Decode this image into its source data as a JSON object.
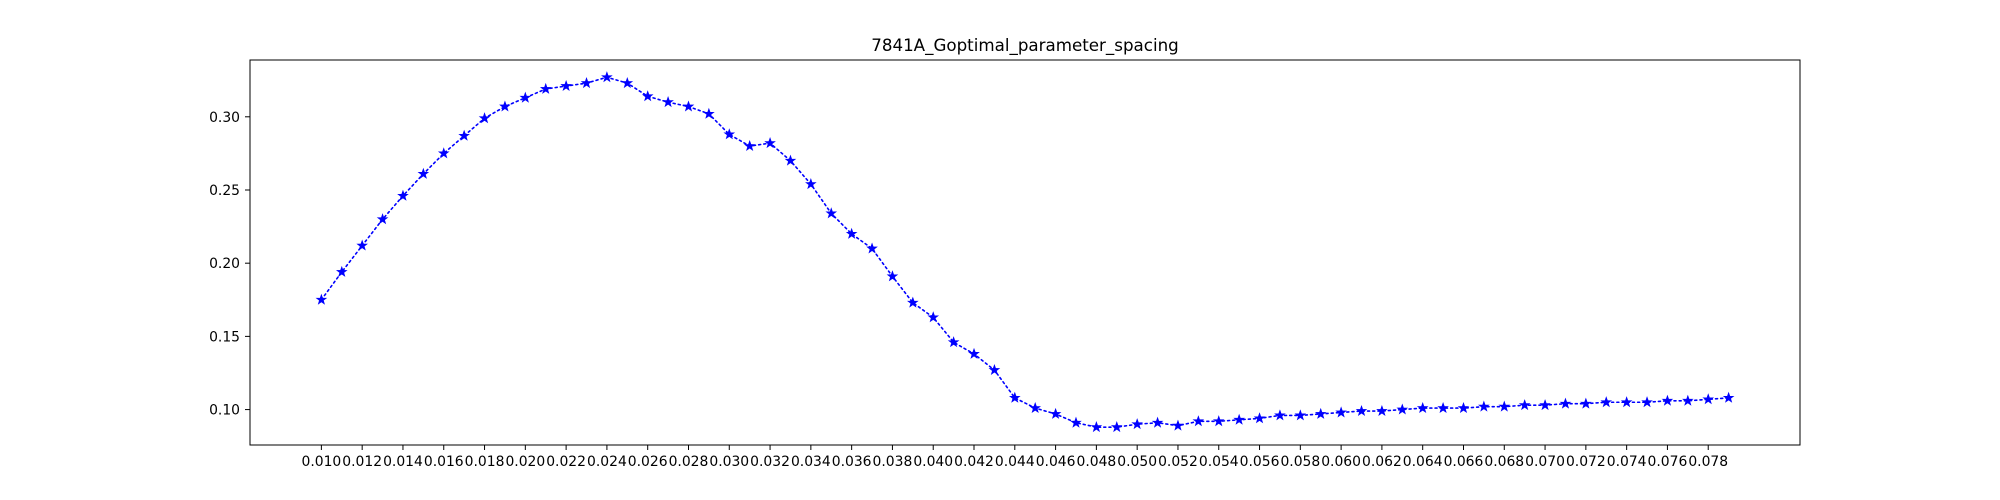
{
  "chart_data": {
    "type": "line",
    "title": "7841A_Goptimal_parameter_spacing",
    "xlabel": "",
    "ylabel": "",
    "x": [
      0.01,
      0.011,
      0.012,
      0.013,
      0.014,
      0.015,
      0.016,
      0.017,
      0.018,
      0.019,
      0.02,
      0.021,
      0.022,
      0.023,
      0.024,
      0.025,
      0.026,
      0.027,
      0.028,
      0.029,
      0.03,
      0.031,
      0.032,
      0.033,
      0.034,
      0.035,
      0.036,
      0.037,
      0.038,
      0.039,
      0.04,
      0.041,
      0.042,
      0.043,
      0.044,
      0.045,
      0.046,
      0.047,
      0.048,
      0.049,
      0.05,
      0.051,
      0.052,
      0.053,
      0.054,
      0.055,
      0.056,
      0.057,
      0.058,
      0.059,
      0.06,
      0.061,
      0.062,
      0.063,
      0.064,
      0.065,
      0.066,
      0.067,
      0.068,
      0.069,
      0.07,
      0.071,
      0.072,
      0.073,
      0.074,
      0.075,
      0.076,
      0.077,
      0.078,
      0.079
    ],
    "series": [
      {
        "name": "",
        "color": "#0000ff",
        "marker": "star",
        "linestyle": "dotted",
        "values": [
          0.175,
          0.194,
          0.212,
          0.23,
          0.246,
          0.261,
          0.275,
          0.287,
          0.299,
          0.307,
          0.313,
          0.319,
          0.321,
          0.323,
          0.327,
          0.323,
          0.314,
          0.31,
          0.307,
          0.302,
          0.288,
          0.28,
          0.282,
          0.27,
          0.254,
          0.234,
          0.22,
          0.21,
          0.191,
          0.173,
          0.163,
          0.146,
          0.138,
          0.127,
          0.108,
          0.101,
          0.097,
          0.091,
          0.088,
          0.088,
          0.09,
          0.091,
          0.089,
          0.092,
          0.092,
          0.093,
          0.094,
          0.096,
          0.096,
          0.097,
          0.098,
          0.099,
          0.099,
          0.1,
          0.101,
          0.101,
          0.101,
          0.102,
          0.102,
          0.103,
          0.103,
          0.104,
          0.104,
          0.105,
          0.105,
          0.105,
          0.106,
          0.106,
          0.107,
          0.108
        ]
      }
    ],
    "xticks": [
      "0.010",
      "0.012",
      "0.014",
      "0.016",
      "0.018",
      "0.020",
      "0.022",
      "0.024",
      "0.026",
      "0.028",
      "0.030",
      "0.032",
      "0.034",
      "0.036",
      "0.038",
      "0.040",
      "0.042",
      "0.044",
      "0.046",
      "0.048",
      "0.050",
      "0.052",
      "0.054",
      "0.056",
      "0.058",
      "0.060",
      "0.062",
      "0.064",
      "0.066",
      "0.068",
      "0.070",
      "0.072",
      "0.074",
      "0.076",
      "0.078"
    ],
    "yticks": [
      "0.10",
      "0.15",
      "0.20",
      "0.25",
      "0.30"
    ],
    "xlim": [
      0.0065,
      0.0825
    ],
    "ylim": [
      0.0758,
      0.3388
    ],
    "grid": false,
    "legend": "none"
  }
}
